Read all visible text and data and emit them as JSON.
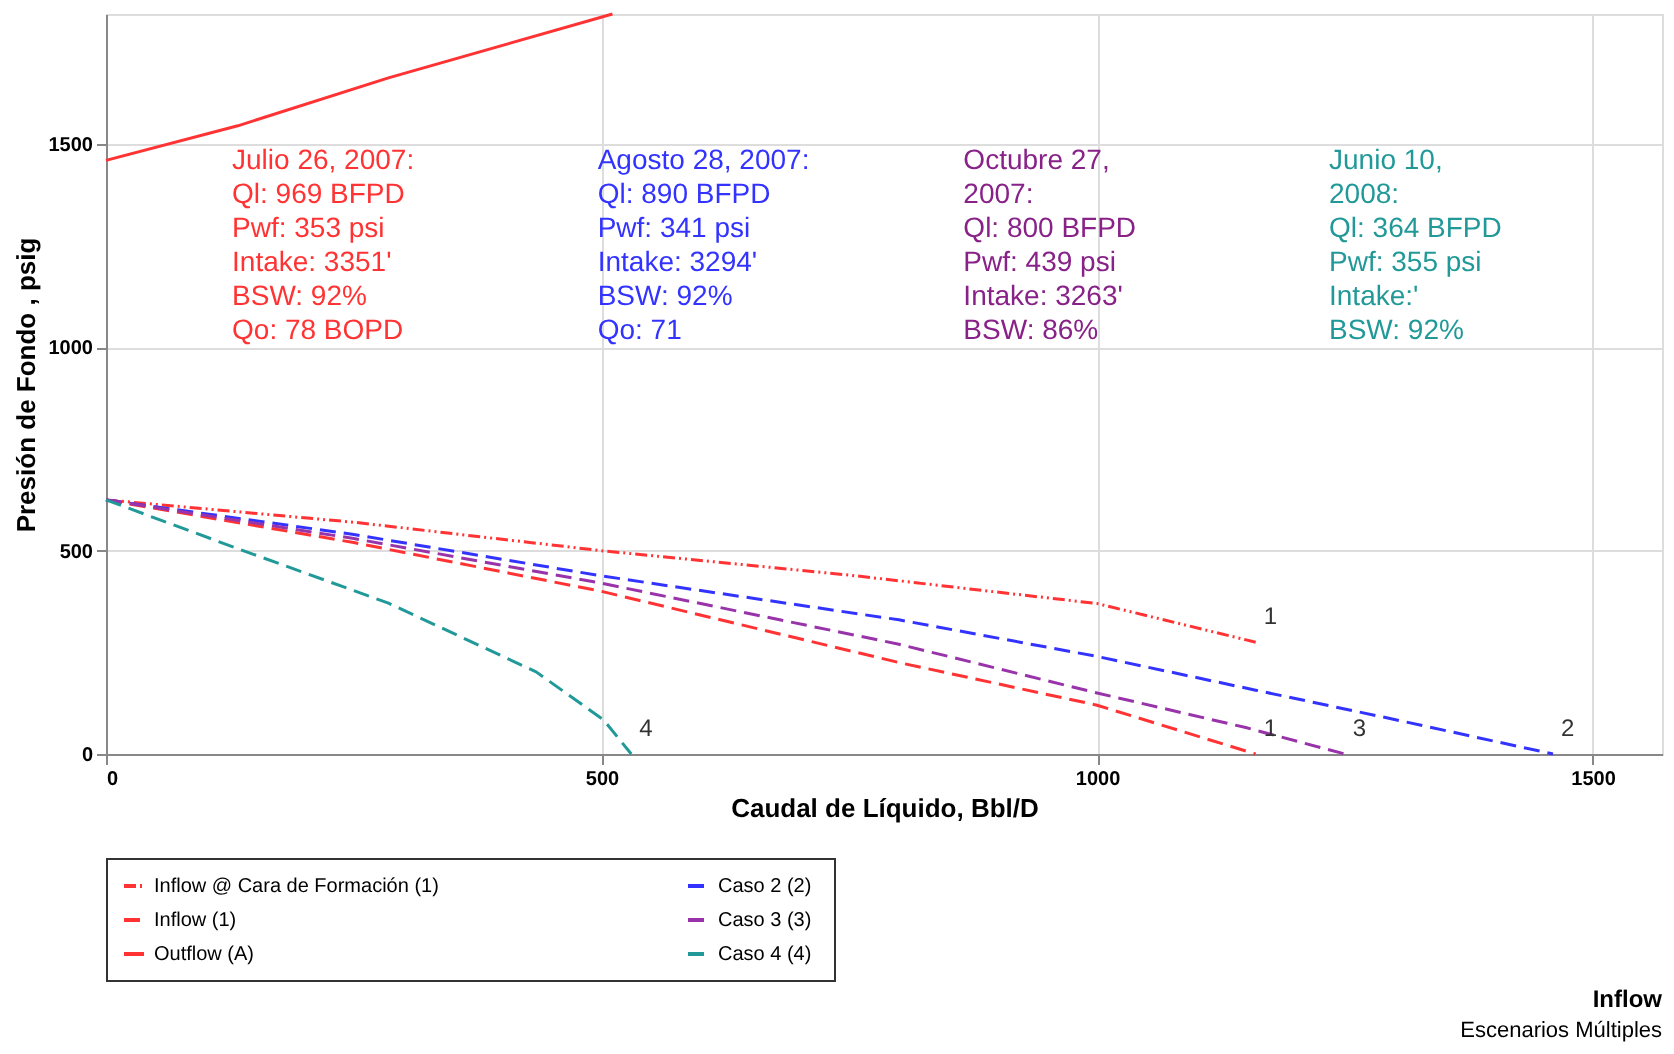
{
  "chart_data": {
    "type": "line",
    "title": "Inflow",
    "subtitle": "Escenarios Múltiples",
    "xlabel": "Caudal de Líquido, Bbl/D",
    "ylabel": "Presión de Fondo , psig",
    "xlim": [
      0,
      1570
    ],
    "ylim": [
      0,
      1820
    ],
    "xticks": [
      0,
      500,
      1000,
      1500
    ],
    "yticks": [
      0,
      500,
      1000,
      1500
    ],
    "grid": true,
    "legend": "bottom",
    "marker": "none",
    "series": [
      {
        "name": "Inflow @ Cara de Formación (1)",
        "color": "#ff3333",
        "line_style": "dotted",
        "x": [
          0,
          250,
          500,
          750,
          1000,
          1160
        ],
        "values": [
          625,
          570,
          500,
          440,
          370,
          275
        ]
      },
      {
        "name": "Inflow (1)",
        "color": "#ff3333",
        "line_style": "dashed",
        "x": [
          0,
          250,
          500,
          800,
          1000,
          1160
        ],
        "values": [
          625,
          520,
          400,
          225,
          120,
          0
        ]
      },
      {
        "name": "Outflow (A)",
        "color": "#ff3333",
        "line_style": "solid",
        "x": [
          0,
          133,
          285,
          511
        ],
        "values": [
          1460,
          1545,
          1663,
          1820
        ]
      },
      {
        "name": "Caso  2 (2)",
        "color": "#3333ff",
        "line_style": "dashed",
        "x": [
          0,
          250,
          500,
          800,
          1000,
          1160,
          1300,
          1460
        ],
        "values": [
          625,
          540,
          438,
          330,
          240,
          157,
          85,
          0
        ]
      },
      {
        "name": "Caso  3 (3)",
        "color": "#9933aa",
        "line_style": "dashed",
        "x": [
          0,
          250,
          500,
          800,
          1000,
          1150,
          1250
        ],
        "values": [
          625,
          530,
          420,
          270,
          150,
          65,
          0
        ]
      },
      {
        "name": "Caso  4 (4)",
        "color": "#229999",
        "line_style": "dashed",
        "x": [
          0,
          133,
          285,
          434,
          502,
          530
        ],
        "values": [
          625,
          505,
          371,
          202,
          84,
          0
        ]
      }
    ],
    "annotations": [
      "Julio 26, 2007:\nQl: 969 BFPD\nPwf: 353 psi\nIntake: 3351'\nBSW: 92%\nQo: 78 BOPD",
      "Agosto 28, 2007:\nQl: 890 BFPD\nPwf: 341 psi\nIntake: 3294'\nBSW: 92%\nQo: 71",
      "Octubre 27,\n2007:\nQl: 800 BFPD\nPwf: 439 psi\nIntake: 3263'\nBSW: 86%",
      "Junio 10,\n2008:\nQl: 364 BFPD\nPwf: 355 psi\nIntake:'\nBSW: 92%",
      {
        "text": "1",
        "x": 1160,
        "y": 275
      },
      {
        "text": "1",
        "x": 1160,
        "y": 0
      },
      {
        "text": "3",
        "x": 1250,
        "y": 0
      },
      {
        "text": "2",
        "x": 1460,
        "y": 0
      },
      {
        "text": "4",
        "x": 530,
        "y": 0
      }
    ]
  }
}
